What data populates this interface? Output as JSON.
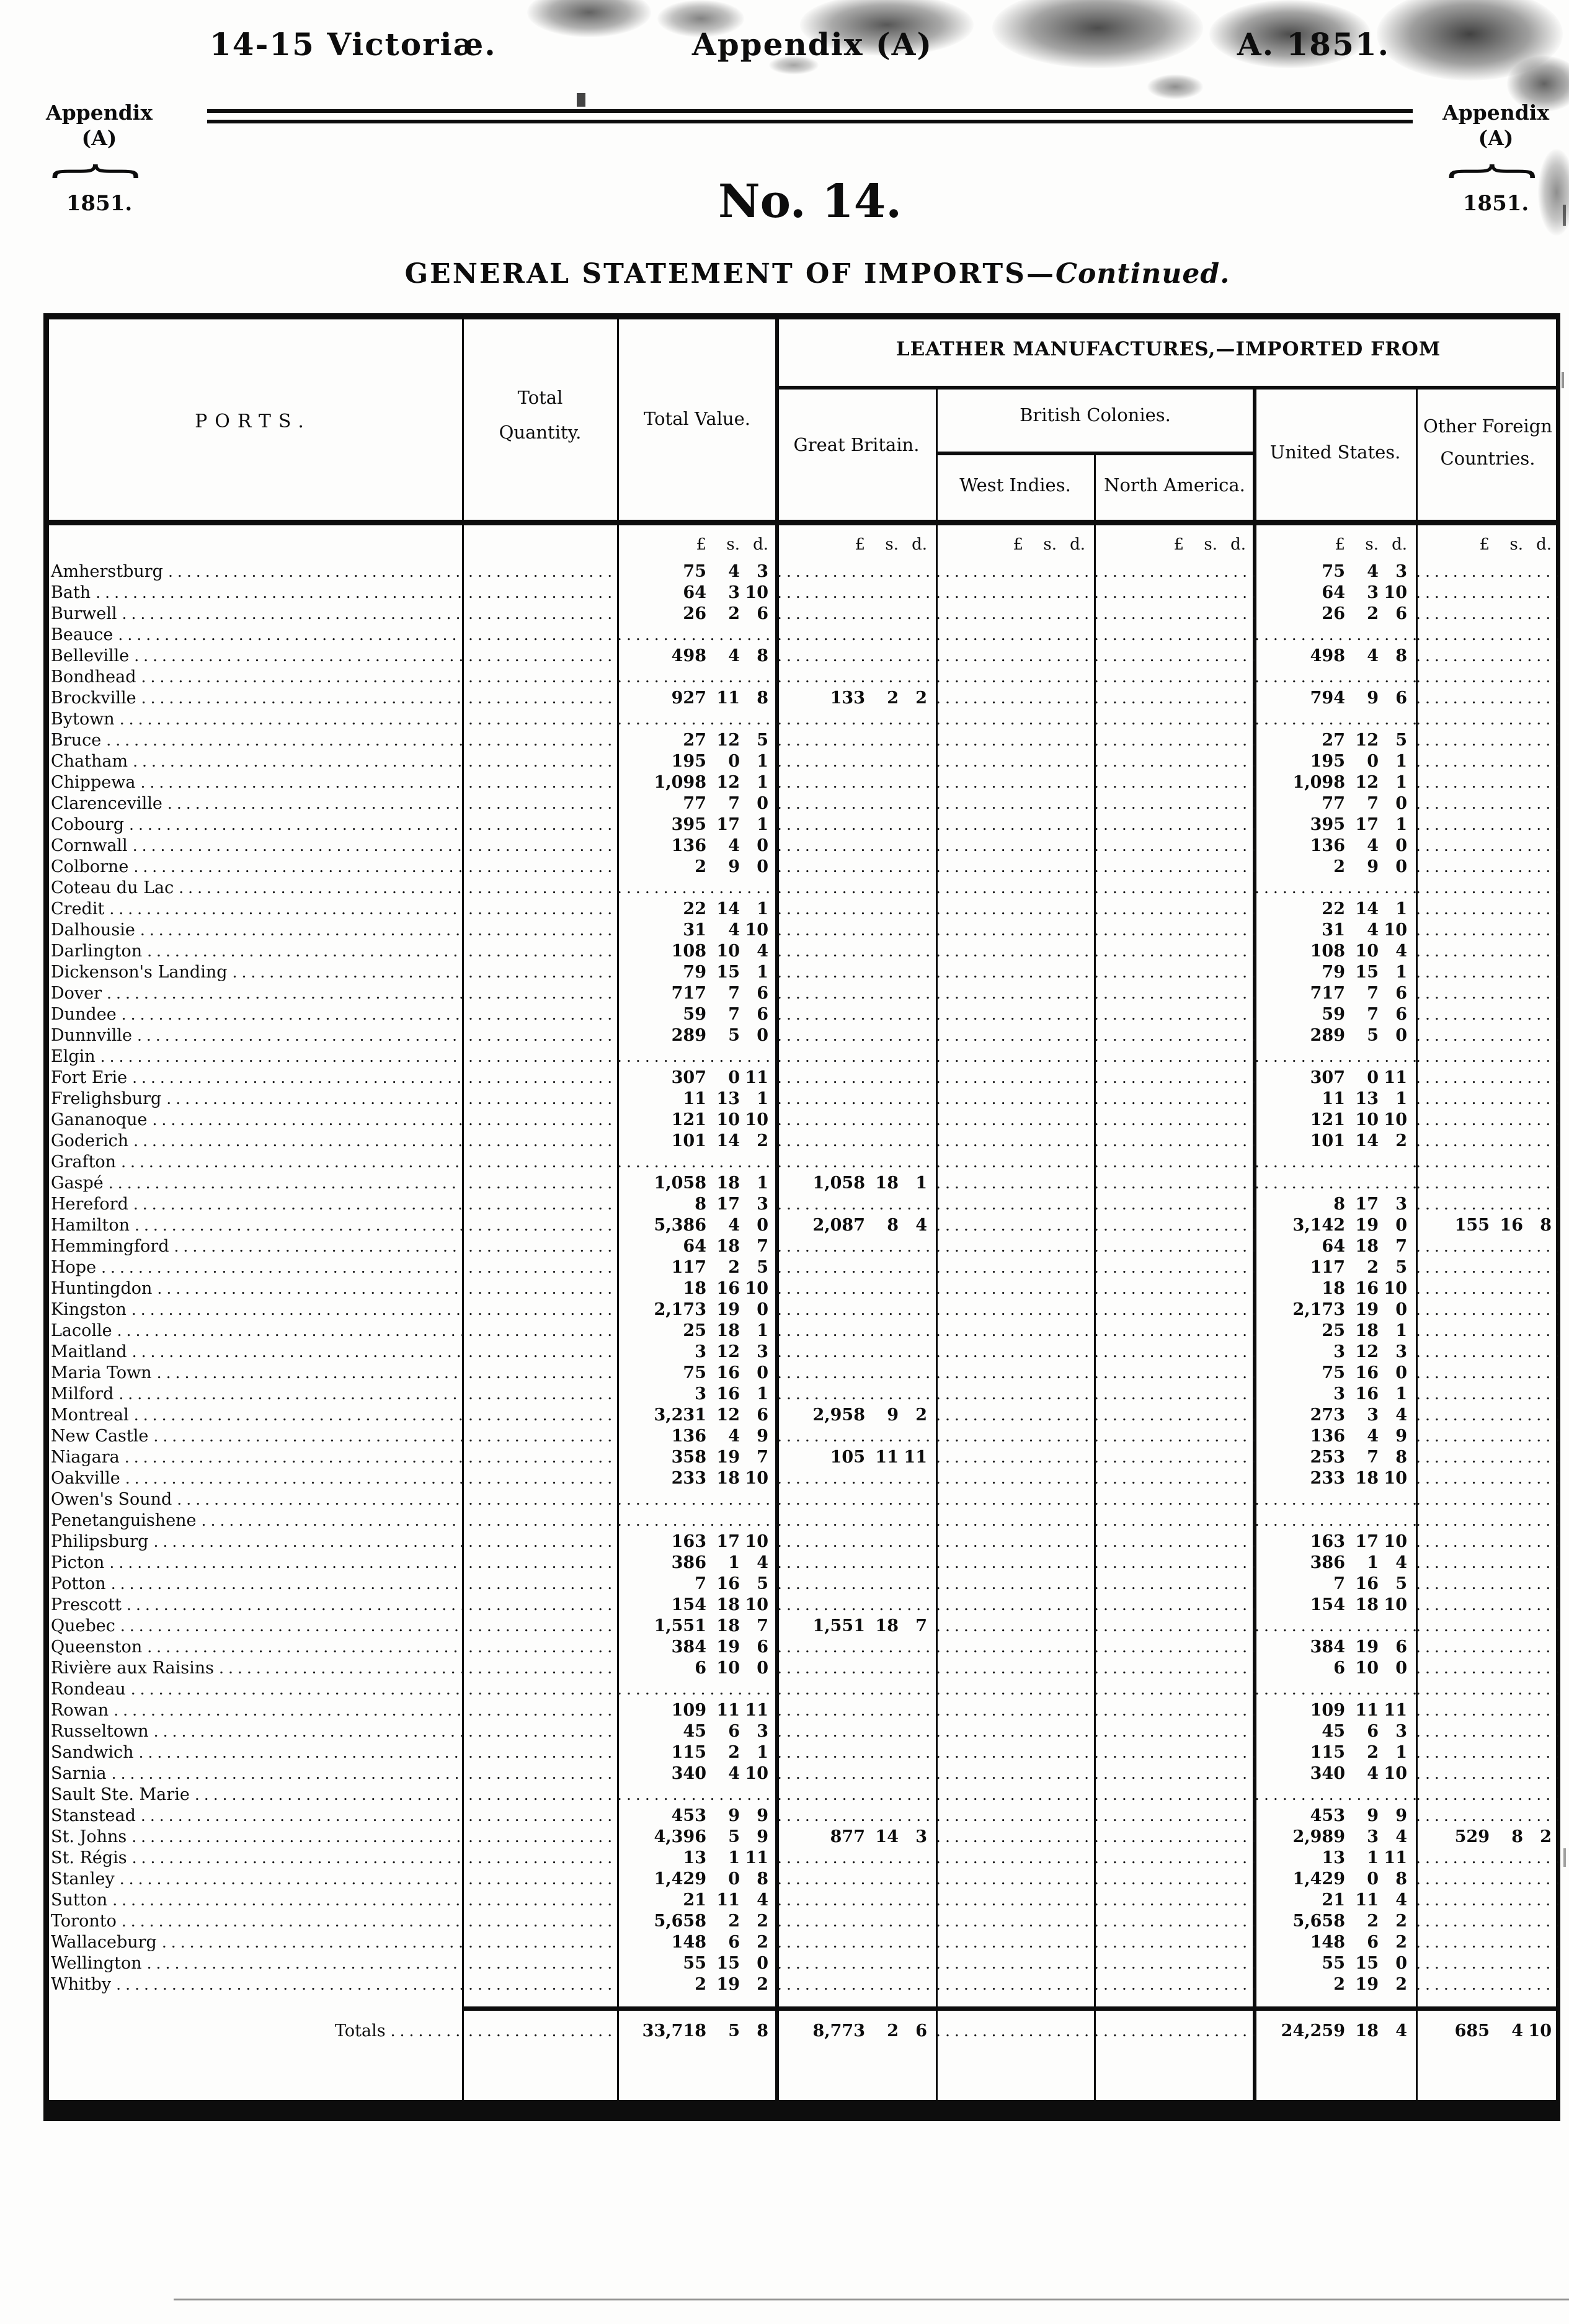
{
  "header": {
    "top_left": "14-15 Victoriæ.",
    "top_center": "Appendix (A)",
    "top_right": "A. 1851.",
    "doc_number": "No. 14."
  },
  "margin": {
    "line1": "Appendix",
    "line2": "(A)",
    "year": "1851.",
    "brace_glyph": "{"
  },
  "title": {
    "main": "GENERAL STATEMENT OF IMPORTS—",
    "continued": "Continued."
  },
  "table": {
    "col_ports": "PORTS.",
    "col_total_quantity_1": "Total",
    "col_total_quantity_2": "Quantity.",
    "col_total_value": "Total Value.",
    "group_header": "LEATHER MANUFACTURES,—IMPORTED FROM",
    "col_great_britain": "Great Britain.",
    "col_british_colonies": "British Colonies.",
    "col_west_indies": "West Indies.",
    "col_north_america": "North America.",
    "col_united_states": "United States.",
    "col_other_foreign_1": "Other Foreign",
    "col_other_foreign_2": "Countries.",
    "currency_header": [
      "£",
      "s.",
      "d."
    ],
    "rows": [
      {
        "port": "Amherstburg",
        "total": [
          "75",
          "4",
          "3"
        ],
        "us": [
          "75",
          "4",
          "3"
        ]
      },
      {
        "port": "Bath",
        "total": [
          "64",
          "3",
          "10"
        ],
        "us": [
          "64",
          "3",
          "10"
        ]
      },
      {
        "port": "Burwell",
        "total": [
          "26",
          "2",
          "6"
        ],
        "us": [
          "26",
          "2",
          "6"
        ]
      },
      {
        "port": "Beauce"
      },
      {
        "port": "Belleville",
        "total": [
          "498",
          "4",
          "8"
        ],
        "us": [
          "498",
          "4",
          "8"
        ]
      },
      {
        "port": "Bondhead"
      },
      {
        "port": "Brockville",
        "total": [
          "927",
          "11",
          "8"
        ],
        "gb": [
          "133",
          "2",
          "2"
        ],
        "us": [
          "794",
          "9",
          "6"
        ]
      },
      {
        "port": "Bytown"
      },
      {
        "port": "Bruce",
        "total": [
          "27",
          "12",
          "5"
        ],
        "us": [
          "27",
          "12",
          "5"
        ]
      },
      {
        "port": "Chatham",
        "total": [
          "195",
          "0",
          "1"
        ],
        "us": [
          "195",
          "0",
          "1"
        ]
      },
      {
        "port": "Chippewa",
        "total": [
          "1,098",
          "12",
          "1"
        ],
        "us": [
          "1,098",
          "12",
          "1"
        ]
      },
      {
        "port": "Clarenceville",
        "total": [
          "77",
          "7",
          "0"
        ],
        "us": [
          "77",
          "7",
          "0"
        ]
      },
      {
        "port": "Cobourg",
        "total": [
          "395",
          "17",
          "1"
        ],
        "us": [
          "395",
          "17",
          "1"
        ]
      },
      {
        "port": "Cornwall",
        "total": [
          "136",
          "4",
          "0"
        ],
        "us": [
          "136",
          "4",
          "0"
        ]
      },
      {
        "port": "Colborne",
        "total": [
          "2",
          "9",
          "0"
        ],
        "us": [
          "2",
          "9",
          "0"
        ]
      },
      {
        "port": "Coteau du Lac"
      },
      {
        "port": "Credit",
        "total": [
          "22",
          "14",
          "1"
        ],
        "us": [
          "22",
          "14",
          "1"
        ]
      },
      {
        "port": "Dalhousie",
        "total": [
          "31",
          "4",
          "10"
        ],
        "us": [
          "31",
          "4",
          "10"
        ]
      },
      {
        "port": "Darlington",
        "total": [
          "108",
          "10",
          "4"
        ],
        "us": [
          "108",
          "10",
          "4"
        ]
      },
      {
        "port": "Dickenson's Landing",
        "total": [
          "79",
          "15",
          "1"
        ],
        "us": [
          "79",
          "15",
          "1"
        ]
      },
      {
        "port": "Dover",
        "total": [
          "717",
          "7",
          "6"
        ],
        "us": [
          "717",
          "7",
          "6"
        ]
      },
      {
        "port": "Dundee",
        "total": [
          "59",
          "7",
          "6"
        ],
        "us": [
          "59",
          "7",
          "6"
        ]
      },
      {
        "port": "Dunnville",
        "total": [
          "289",
          "5",
          "0"
        ],
        "us": [
          "289",
          "5",
          "0"
        ]
      },
      {
        "port": "Elgin"
      },
      {
        "port": "Fort Erie",
        "total": [
          "307",
          "0",
          "11"
        ],
        "us": [
          "307",
          "0",
          "11"
        ]
      },
      {
        "port": "Frelighsburg",
        "total": [
          "11",
          "13",
          "1"
        ],
        "us": [
          "11",
          "13",
          "1"
        ]
      },
      {
        "port": "Gananoque",
        "total": [
          "121",
          "10",
          "10"
        ],
        "us": [
          "121",
          "10",
          "10"
        ]
      },
      {
        "port": "Goderich",
        "total": [
          "101",
          "14",
          "2"
        ],
        "us": [
          "101",
          "14",
          "2"
        ]
      },
      {
        "port": "Grafton"
      },
      {
        "port": "Gaspé",
        "total": [
          "1,058",
          "18",
          "1"
        ],
        "gb": [
          "1,058",
          "18",
          "1"
        ]
      },
      {
        "port": "Hereford",
        "total": [
          "8",
          "17",
          "3"
        ],
        "us": [
          "8",
          "17",
          "3"
        ]
      },
      {
        "port": "Hamilton",
        "total": [
          "5,386",
          "4",
          "0"
        ],
        "gb": [
          "2,087",
          "8",
          "4"
        ],
        "us": [
          "3,142",
          "19",
          "0"
        ],
        "of": [
          "155",
          "16",
          "8"
        ]
      },
      {
        "port": "Hemmingford",
        "total": [
          "64",
          "18",
          "7"
        ],
        "us": [
          "64",
          "18",
          "7"
        ]
      },
      {
        "port": "Hope",
        "total": [
          "117",
          "2",
          "5"
        ],
        "us": [
          "117",
          "2",
          "5"
        ]
      },
      {
        "port": "Huntingdon",
        "total": [
          "18",
          "16",
          "10"
        ],
        "us": [
          "18",
          "16",
          "10"
        ]
      },
      {
        "port": "Kingston",
        "total": [
          "2,173",
          "19",
          "0"
        ],
        "us": [
          "2,173",
          "19",
          "0"
        ]
      },
      {
        "port": "Lacolle",
        "total": [
          "25",
          "18",
          "1"
        ],
        "us": [
          "25",
          "18",
          "1"
        ]
      },
      {
        "port": "Maitland",
        "total": [
          "3",
          "12",
          "3"
        ],
        "us": [
          "3",
          "12",
          "3"
        ]
      },
      {
        "port": "Maria Town",
        "total": [
          "75",
          "16",
          "0"
        ],
        "us": [
          "75",
          "16",
          "0"
        ]
      },
      {
        "port": "Milford",
        "total": [
          "3",
          "16",
          "1"
        ],
        "us": [
          "3",
          "16",
          "1"
        ]
      },
      {
        "port": "Montreal",
        "total": [
          "3,231",
          "12",
          "6"
        ],
        "gb": [
          "2,958",
          "9",
          "2"
        ],
        "us": [
          "273",
          "3",
          "4"
        ]
      },
      {
        "port": "New Castle",
        "total": [
          "136",
          "4",
          "9"
        ],
        "us": [
          "136",
          "4",
          "9"
        ]
      },
      {
        "port": "Niagara",
        "total": [
          "358",
          "19",
          "7"
        ],
        "gb": [
          "105",
          "11",
          "11"
        ],
        "us": [
          "253",
          "7",
          "8"
        ]
      },
      {
        "port": "Oakville",
        "total": [
          "233",
          "18",
          "10"
        ],
        "us": [
          "233",
          "18",
          "10"
        ]
      },
      {
        "port": "Owen's Sound"
      },
      {
        "port": "Penetanguishene"
      },
      {
        "port": "Philipsburg",
        "total": [
          "163",
          "17",
          "10"
        ],
        "us": [
          "163",
          "17",
          "10"
        ]
      },
      {
        "port": "Picton",
        "total": [
          "386",
          "1",
          "4"
        ],
        "us": [
          "386",
          "1",
          "4"
        ]
      },
      {
        "port": "Potton",
        "total": [
          "7",
          "16",
          "5"
        ],
        "us": [
          "7",
          "16",
          "5"
        ]
      },
      {
        "port": "Prescott",
        "total": [
          "154",
          "18",
          "10"
        ],
        "us": [
          "154",
          "18",
          "10"
        ]
      },
      {
        "port": "Quebec",
        "total": [
          "1,551",
          "18",
          "7"
        ],
        "gb": [
          "1,551",
          "18",
          "7"
        ]
      },
      {
        "port": "Queenston",
        "total": [
          "384",
          "19",
          "6"
        ],
        "us": [
          "384",
          "19",
          "6"
        ]
      },
      {
        "port": "Rivière aux Raisins",
        "total": [
          "6",
          "10",
          "0"
        ],
        "us": [
          "6",
          "10",
          "0"
        ]
      },
      {
        "port": "Rondeau"
      },
      {
        "port": "Rowan",
        "total": [
          "109",
          "11",
          "11"
        ],
        "us": [
          "109",
          "11",
          "11"
        ]
      },
      {
        "port": "Russeltown",
        "total": [
          "45",
          "6",
          "3"
        ],
        "us": [
          "45",
          "6",
          "3"
        ]
      },
      {
        "port": "Sandwich",
        "total": [
          "115",
          "2",
          "1"
        ],
        "us": [
          "115",
          "2",
          "1"
        ]
      },
      {
        "port": "Sarnia",
        "total": [
          "340",
          "4",
          "10"
        ],
        "us": [
          "340",
          "4",
          "10"
        ]
      },
      {
        "port": "Sault Ste. Marie"
      },
      {
        "port": "Stanstead",
        "total": [
          "453",
          "9",
          "9"
        ],
        "us": [
          "453",
          "9",
          "9"
        ]
      },
      {
        "port": "St. Johns",
        "total": [
          "4,396",
          "5",
          "9"
        ],
        "gb": [
          "877",
          "14",
          "3"
        ],
        "us": [
          "2,989",
          "3",
          "4"
        ],
        "of": [
          "529",
          "8",
          "2"
        ]
      },
      {
        "port": "St. Régis",
        "total": [
          "13",
          "1",
          "11"
        ],
        "us": [
          "13",
          "1",
          "11"
        ]
      },
      {
        "port": "Stanley",
        "total": [
          "1,429",
          "0",
          "8"
        ],
        "us": [
          "1,429",
          "0",
          "8"
        ]
      },
      {
        "port": "Sutton",
        "total": [
          "21",
          "11",
          "4"
        ],
        "us": [
          "21",
          "11",
          "4"
        ]
      },
      {
        "port": "Toronto",
        "total": [
          "5,658",
          "2",
          "2"
        ],
        "us": [
          "5,658",
          "2",
          "2"
        ]
      },
      {
        "port": "Wallaceburg",
        "total": [
          "148",
          "6",
          "2"
        ],
        "us": [
          "148",
          "6",
          "2"
        ]
      },
      {
        "port": "Wellington",
        "total": [
          "55",
          "15",
          "0"
        ],
        "us": [
          "55",
          "15",
          "0"
        ]
      },
      {
        "port": "Whitby",
        "total": [
          "2",
          "19",
          "2"
        ],
        "us": [
          "2",
          "19",
          "2"
        ]
      }
    ],
    "totals": {
      "label": "Totals",
      "total": [
        "33,718",
        "5",
        "8"
      ],
      "gb": [
        "8,773",
        "2",
        "6"
      ],
      "us": [
        "24,259",
        "18",
        "4"
      ],
      "of": [
        "685",
        "4",
        "10"
      ]
    }
  }
}
